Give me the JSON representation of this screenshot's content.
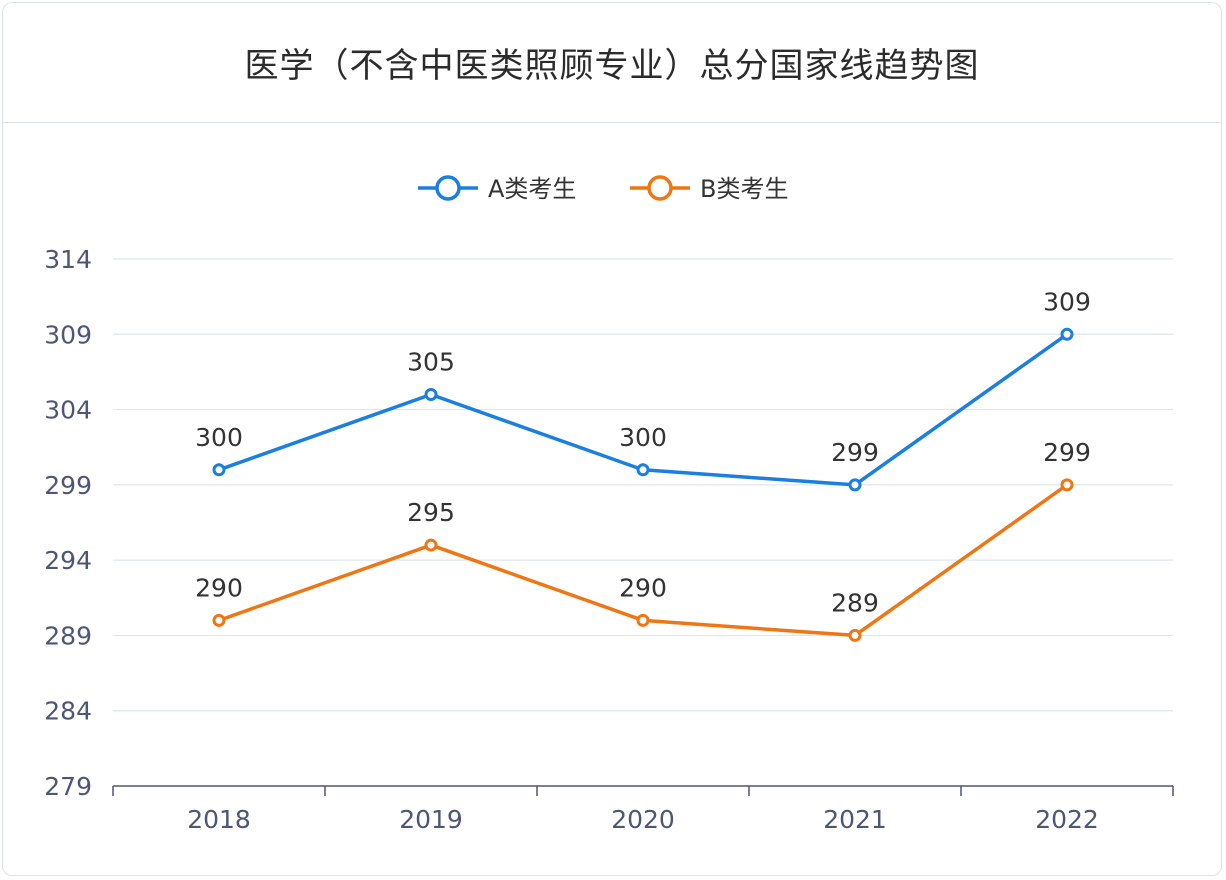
{
  "chart_data": {
    "type": "line",
    "title": "医学（不含中医类照顾专业）总分国家线趋势图",
    "categories": [
      "2018",
      "2019",
      "2020",
      "2021",
      "2022"
    ],
    "series": [
      {
        "name": "A类考生",
        "values": [
          300,
          305,
          300,
          299,
          309
        ],
        "color": "#1a7fe0"
      },
      {
        "name": "B类考生",
        "values": [
          290,
          295,
          290,
          289,
          299
        ],
        "color": "#f07613"
      }
    ],
    "y_ticks": [
      "279",
      "284",
      "289",
      "294",
      "299",
      "304",
      "309",
      "314"
    ],
    "ylim": [
      279,
      314
    ],
    "grid": true,
    "legend_position": "top-center",
    "data_labels": true
  }
}
